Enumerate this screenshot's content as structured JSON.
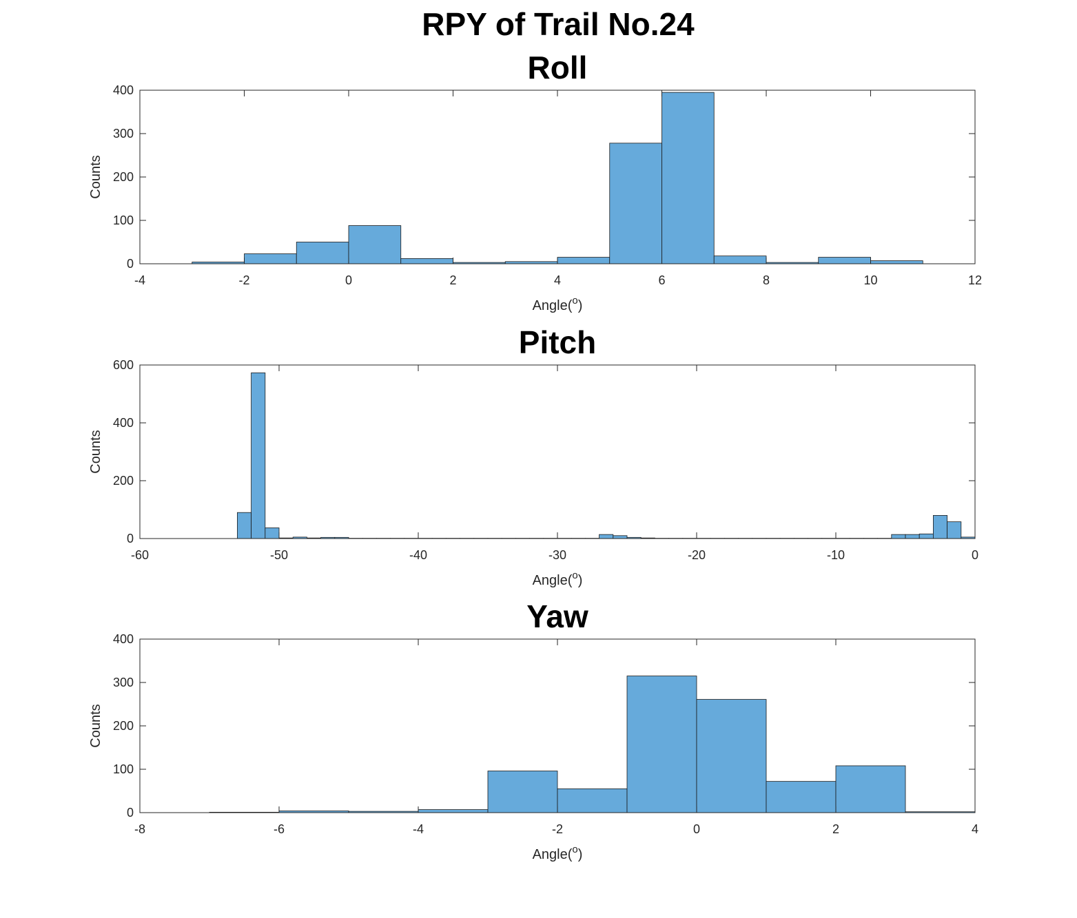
{
  "figure_title": "RPY of Trail No.24",
  "colors": {
    "bar_fill": "#66AADB",
    "bar_edge": "#1a1a1a",
    "axes": "#262626"
  },
  "chart_data": [
    {
      "type": "bar",
      "title": "Roll",
      "xlabel": "Angle(",
      "xlabel_sup": "o",
      "xlabel_end": ")",
      "ylabel": "Counts",
      "xlim": [
        -4,
        12
      ],
      "ylim": [
        0,
        400
      ],
      "xticks": [
        -4,
        -2,
        0,
        2,
        4,
        6,
        8,
        10,
        12
      ],
      "yticks": [
        0,
        100,
        200,
        300,
        400
      ],
      "bin_edges": [
        -3,
        -2,
        -1,
        0,
        1,
        2,
        3,
        4,
        5,
        6,
        7,
        8,
        9,
        10,
        11
      ],
      "values": [
        4,
        23,
        50,
        88,
        12,
        3,
        5,
        15,
        278,
        395,
        18,
        3,
        15,
        7
      ],
      "grid": false
    },
    {
      "type": "bar",
      "title": "Pitch",
      "xlabel": "Angle(",
      "xlabel_sup": "o",
      "xlabel_end": ")",
      "ylabel": "Counts",
      "xlim": [
        -60,
        0
      ],
      "ylim": [
        0,
        600
      ],
      "xticks": [
        -60,
        -50,
        -40,
        -30,
        -20,
        -10,
        0
      ],
      "yticks": [
        0,
        200,
        400,
        600
      ],
      "bin_edges": [
        -53,
        -52,
        -51,
        -50,
        -49,
        -48,
        -47,
        -46,
        -45,
        -44,
        -43,
        -42,
        -41,
        -40,
        -39,
        -38,
        -37,
        -36,
        -35,
        -34,
        -33,
        -32,
        -31,
        -30,
        -29,
        -28,
        -27,
        -26,
        -25,
        -24,
        -23,
        -22,
        -21,
        -20,
        -19,
        -18,
        -17,
        -16,
        -15,
        -14,
        -13,
        -12,
        -11,
        -10,
        -9,
        -8,
        -7,
        -6,
        -5,
        -4,
        -3,
        -2,
        -1,
        0
      ],
      "values": [
        90,
        573,
        37,
        2,
        5,
        2,
        4,
        4,
        1,
        1,
        1,
        1,
        1,
        1,
        1,
        1,
        1,
        1,
        1,
        1,
        1,
        1,
        1,
        1,
        1,
        1,
        14,
        10,
        4,
        2,
        1,
        1,
        1,
        1,
        1,
        1,
        1,
        1,
        1,
        1,
        1,
        1,
        1,
        1,
        1,
        1,
        1,
        14,
        14,
        16,
        80,
        58,
        5
      ],
      "grid": false
    },
    {
      "type": "bar",
      "title": "Yaw",
      "xlabel": "Angle(",
      "xlabel_sup": "o",
      "xlabel_end": ")",
      "ylabel": "Counts",
      "xlim": [
        -8,
        4
      ],
      "ylim": [
        0,
        400
      ],
      "xticks": [
        -8,
        -6,
        -4,
        -2,
        0,
        2,
        4
      ],
      "yticks": [
        0,
        100,
        200,
        300,
        400
      ],
      "bin_edges": [
        -7,
        -6,
        -5,
        -4,
        -3,
        -2,
        -1,
        0,
        1,
        2,
        3,
        4
      ],
      "values": [
        1,
        4,
        3,
        7,
        96,
        55,
        315,
        261,
        72,
        108,
        2
      ],
      "grid": false
    }
  ]
}
